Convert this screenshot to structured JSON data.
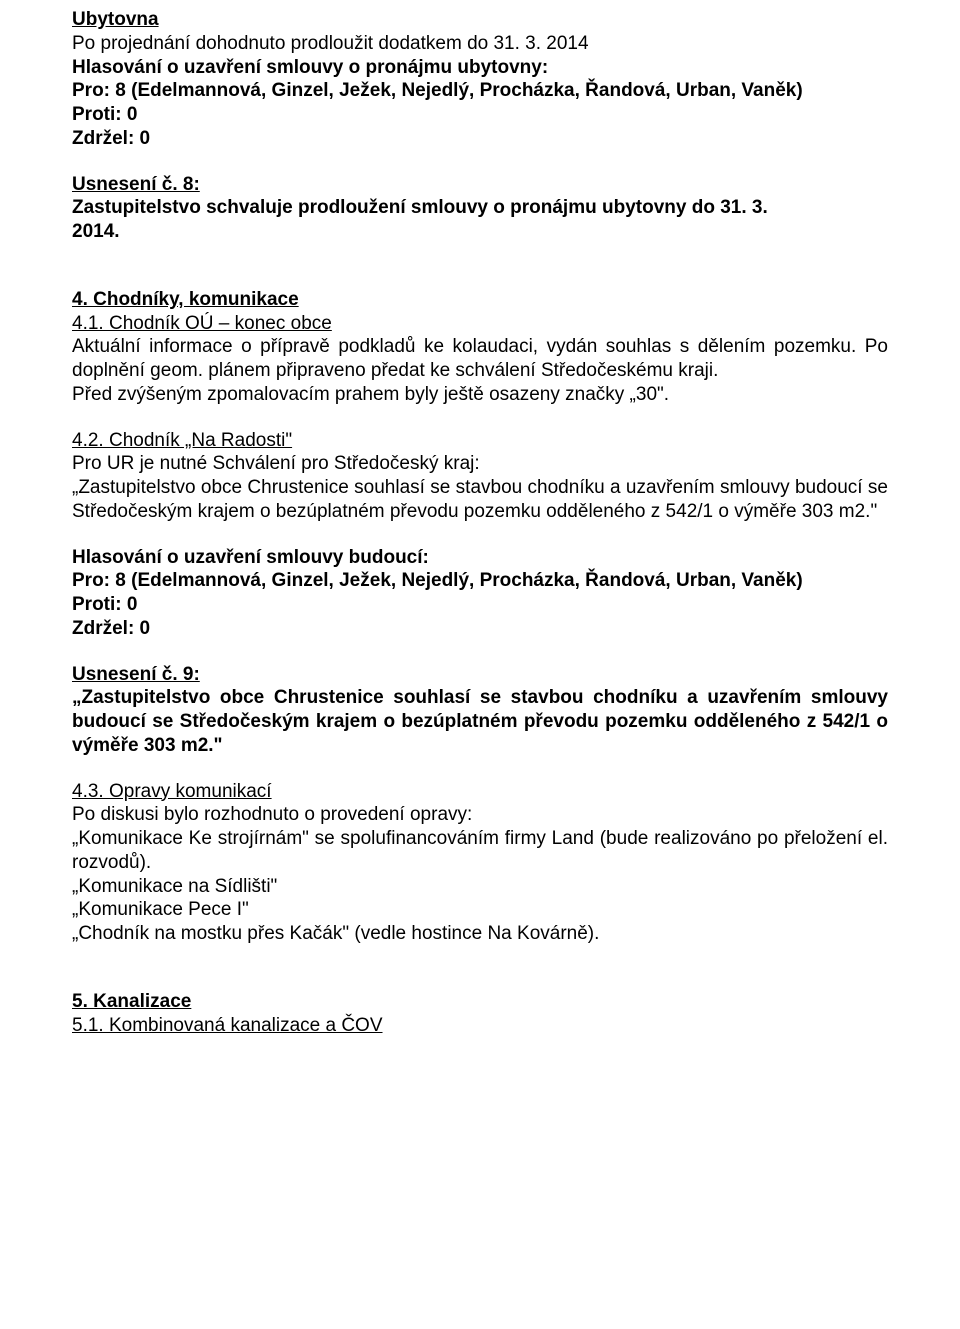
{
  "s1": {
    "heading": "Ubytovna",
    "line1": "Po projednání dohodnuto prodloužit dodatkem do 31. 3. 2014",
    "voteTitle": "Hlasování o uzavření smlouvy o pronájmu ubytovny:",
    "votePro": "Pro:  8 (Edelmannová, Ginzel, Ježek, Nejedlý,  Procházka, Řandová, Urban, Vaněk)",
    "voteProti": "Proti: 0",
    "voteZdrzel": "Zdržel: 0"
  },
  "u8": {
    "title": "Usnesení č. 8:",
    "line1": "Zastupitelstvo schvaluje prodloužení smlouvy  o pronájmu ubytovny do 31. 3.",
    "line2": "2014."
  },
  "s4": {
    "heading": "4. Chodníky, komunikace",
    "s41title": "4.1. Chodník OÚ – konec obce",
    "s41p1": "Aktuální  informace  o  přípravě  podkladů  ke  kolaudaci,  vydán  souhlas  s dělením pozemku. Po doplnění geom. plánem připraveno předat ke schválení Středočeskému kraji.",
    "s41p2": "Před zvýšeným zpomalovacím prahem byly ještě osazeny značky „30\".",
    "s42title": "4.2. Chodník „Na Radosti\"",
    "s42p1a": "Pro UR je nutné Schválení pro Středočeský kraj:",
    "s42p1b": "„Zastupitelstvo obce Chrustenice souhlasí se stavbou chodníku a uzavřením smlouvy budoucí  se  Středočeským  krajem  o  bezúplatném  převodu  pozemku  odděleného z 542/1 o výměře 303 m2.\"",
    "voteTitle": "Hlasování o uzavření smlouvy budoucí:",
    "votePro": "Pro:  8 (Edelmannová, Ginzel, Ježek, Nejedlý,  Procházka, Řandová, Urban, Vaněk)",
    "voteProti": "Proti: 0",
    "voteZdrzel": "Zdržel: 0"
  },
  "u9": {
    "title": "Usnesení č. 9:",
    "body": "„Zastupitelstvo obce Chrustenice souhlasí se stavbou chodníku a uzavřením smlouvy budoucí se Středočeským krajem o bezúplatném převodu pozemku odděleného z 542/1 o výměře 303 m2.\""
  },
  "s43": {
    "title": "4.3. Opravy komunikací",
    "p1": "Po diskusi bylo rozhodnuto o provedení opravy:",
    "p2": "„Komunikace  Ke strojírnám\" se spolufinancováním firmy Land (bude realizováno po přeložení el. rozvodů).",
    "p3": "„Komunikace  na Sídlišti\"",
    "p4": "„Komunikace Pece I\"",
    "p5": "„Chodník na mostku přes Kačák\" (vedle hostince Na Kovárně)."
  },
  "s5": {
    "heading": "5. Kanalizace",
    "s51": "5.1. Kombinovaná kanalizace a ČOV"
  }
}
